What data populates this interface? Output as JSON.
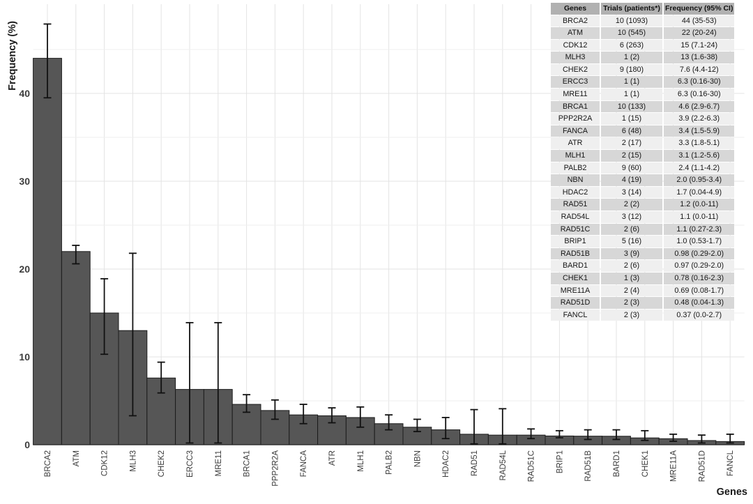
{
  "chart_data": {
    "type": "bar",
    "title": "",
    "xlabel": "Genes",
    "ylabel": "Frequency (%)",
    "ylim": [
      0,
      48.5
    ],
    "yticks": [
      0,
      10,
      20,
      30,
      40
    ],
    "grid": "horizontal major at 10s, minor at 5s, vertical at category centers",
    "legend_position": "none",
    "categories": [
      "BRCA2",
      "ATM",
      "CDK12",
      "MLH3",
      "CHEK2",
      "ERCC3",
      "MRE11",
      "BRCA1",
      "PPP2R2A",
      "FANCA",
      "ATR",
      "MLH1",
      "PALB2",
      "NBN",
      "HDAC2",
      "RAD51",
      "RAD54L",
      "RAD51C",
      "BRIP1",
      "RAD51B",
      "BARD1",
      "CHEK1",
      "MRE11A",
      "RAD51D",
      "FANCL"
    ],
    "values": [
      44,
      22,
      15,
      13,
      7.6,
      6.3,
      6.3,
      4.6,
      3.9,
      3.4,
      3.3,
      3.1,
      2.4,
      2.0,
      1.7,
      1.2,
      1.1,
      1.1,
      1.0,
      0.98,
      0.97,
      0.78,
      0.69,
      0.48,
      0.37
    ],
    "error_low": [
      39.5,
      20.6,
      10.3,
      3.3,
      5.9,
      0.2,
      0.2,
      3.7,
      2.9,
      2.4,
      2.5,
      2.0,
      1.7,
      1.5,
      0.7,
      0.1,
      0.1,
      0.7,
      0.8,
      0.6,
      0.6,
      0.5,
      0.4,
      0.2,
      0.2
    ],
    "error_high": [
      47.9,
      22.7,
      18.9,
      21.8,
      9.4,
      13.9,
      13.9,
      5.7,
      5.1,
      4.6,
      4.2,
      4.3,
      3.4,
      2.9,
      3.1,
      4.0,
      4.1,
      1.8,
      1.6,
      1.7,
      1.7,
      1.6,
      1.2,
      1.1,
      1.2
    ]
  },
  "table": {
    "headers": [
      "Genes",
      "Trials (patients*)",
      "Frequency (95% CI)"
    ],
    "rows": [
      [
        "BRCA2",
        "10 (1093)",
        "44 (35-53)"
      ],
      [
        "ATM",
        "10 (545)",
        "22 (20-24)"
      ],
      [
        "CDK12",
        "6 (263)",
        "15 (7.1-24)"
      ],
      [
        "MLH3",
        "1 (2)",
        "13 (1.6-38)"
      ],
      [
        "CHEK2",
        "9 (180)",
        "7.6 (4.4-12)"
      ],
      [
        "ERCC3",
        "1 (1)",
        "6.3 (0.16-30)"
      ],
      [
        "MRE11",
        "1 (1)",
        "6.3 (0.16-30)"
      ],
      [
        "BRCA1",
        "10 (133)",
        "4.6 (2.9-6.7)"
      ],
      [
        "PPP2R2A",
        "1 (15)",
        "3.9 (2.2-6.3)"
      ],
      [
        "FANCA",
        "6 (48)",
        "3.4 (1.5-5.9)"
      ],
      [
        "ATR",
        "2 (17)",
        "3.3 (1.8-5.1)"
      ],
      [
        "MLH1",
        "2 (15)",
        "3.1 (1.2-5.6)"
      ],
      [
        "PALB2",
        "9 (60)",
        "2.4 (1.1-4.2)"
      ],
      [
        "NBN",
        "4 (19)",
        "2.0 (0.95-3.4)"
      ],
      [
        "HDAC2",
        "3 (14)",
        "1.7 (0.04-4.9)"
      ],
      [
        "RAD51",
        "2 (2)",
        "1.2 (0.0-11)"
      ],
      [
        "RAD54L",
        "3 (12)",
        "1.1 (0.0-11)"
      ],
      [
        "RAD51C",
        "2 (6)",
        "1.1 (0.27-2.3)"
      ],
      [
        "BRIP1",
        "5 (16)",
        "1.0 (0.53-1.7)"
      ],
      [
        "RAD51B",
        "3 (9)",
        "0.98 (0.29-2.0)"
      ],
      [
        "BARD1",
        "2 (6)",
        "0.97 (0.29-2.0)"
      ],
      [
        "CHEK1",
        "1 (3)",
        "0.78 (0.16-2.3)"
      ],
      [
        "MRE11A",
        "2 (4)",
        "0.69 (0.08-1.7)"
      ],
      [
        "RAD51D",
        "2 (3)",
        "0.48 (0.04-1.3)"
      ],
      [
        "FANCL",
        "2 (3)",
        "0.37 (0.0-2.7)"
      ]
    ]
  },
  "colors": {
    "bar_fill": "#565656",
    "bar_stroke": "#1c1c1c",
    "error_bar": "#111111",
    "grid_major": "#e3e3e3",
    "grid_minor": "#efefef",
    "axis_text": "#3c3c3c",
    "axis_title": "#1a1a1a",
    "table_header_bg": "#b1b1b1",
    "table_row_light": "#efefef",
    "table_row_dark": "#d7d7d7"
  }
}
